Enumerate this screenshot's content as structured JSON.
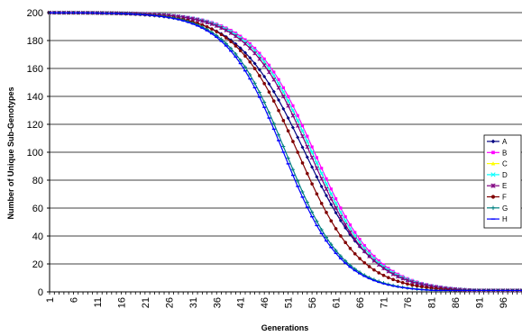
{
  "chart_data": {
    "type": "line",
    "title": "",
    "xlabel": "Generations",
    "ylabel": "Number of Unique Sub-Genotypes",
    "xlim": [
      1,
      100
    ],
    "ylim": [
      0,
      200
    ],
    "x_tick_labels": [
      "1",
      "6",
      "11",
      "16",
      "21",
      "26",
      "31",
      "36",
      "41",
      "46",
      "51",
      "56",
      "61",
      "66",
      "71",
      "76",
      "81",
      "86",
      "91",
      "96"
    ],
    "y_tick_labels": [
      "0",
      "20",
      "40",
      "60",
      "80",
      "100",
      "120",
      "140",
      "160",
      "180",
      "200"
    ],
    "grid": "horizontal",
    "legend_position": "right",
    "series": [
      {
        "name": "A",
        "color": "#000080",
        "marker": "diamond",
        "midpoint": 54.5,
        "width": 7.0
      },
      {
        "name": "B",
        "color": "#ff00ff",
        "marker": "square",
        "midpoint": 56.5,
        "width": 6.5
      },
      {
        "name": "C",
        "color": "#ffff00",
        "marker": "triangle",
        "midpoint": 56.0,
        "width": 6.5
      },
      {
        "name": "D",
        "color": "#00ffff",
        "marker": "x",
        "midpoint": 56.0,
        "width": 6.5
      },
      {
        "name": "E",
        "color": "#800080",
        "marker": "star",
        "midpoint": 55.5,
        "width": 6.5
      },
      {
        "name": "F",
        "color": "#800000",
        "marker": "circle",
        "midpoint": 53.0,
        "width": 6.5
      },
      {
        "name": "G",
        "color": "#008080",
        "marker": "plus",
        "midpoint": 50.5,
        "width": 6.0
      },
      {
        "name": "H",
        "color": "#0000ff",
        "marker": "dash",
        "midpoint": 50.0,
        "width": 6.0
      }
    ]
  }
}
